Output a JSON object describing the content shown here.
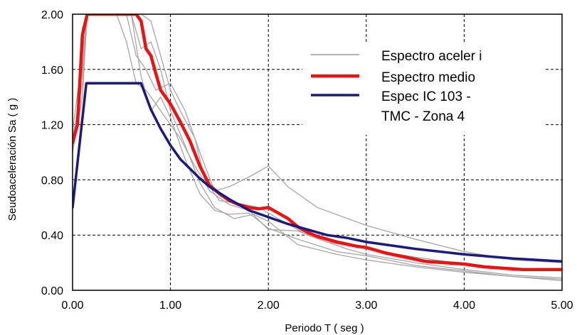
{
  "chart_data": {
    "type": "line",
    "xlabel": "Periodo  T ( seg )",
    "ylabel": "Seudoaceleración  Sa ( g )",
    "xlim": [
      0,
      5
    ],
    "ylim": [
      0,
      2
    ],
    "x_ticks": [
      "0.00",
      "1.00",
      "2.00",
      "3.00",
      "4.00",
      "5.00"
    ],
    "y_ticks": [
      "0.00",
      "0.40",
      "0.80",
      "1.20",
      "1.60",
      "2.00"
    ],
    "grid": true,
    "legend_position": "top-right",
    "legend": [
      {
        "label": "Espectro aceler i",
        "color": "#999999"
      },
      {
        "label": "Espectro medio",
        "color": "#ee1111"
      },
      {
        "label": "Espec IC 103 -",
        "color": "#1a1a80"
      },
      {
        "label": "TMC - Zona 4",
        "color": ""
      }
    ],
    "series": [
      {
        "color": "#a6a6a6",
        "points": [
          [
            0.0,
            1.0
          ],
          [
            0.05,
            1.25
          ],
          [
            0.1,
            1.9
          ],
          [
            0.15,
            2.0
          ],
          [
            0.45,
            2.0
          ],
          [
            0.55,
            1.8
          ],
          [
            0.65,
            1.5
          ],
          [
            0.75,
            1.45
          ],
          [
            0.85,
            1.35
          ],
          [
            0.95,
            1.25
          ],
          [
            1.1,
            1.1
          ],
          [
            1.25,
            0.9
          ],
          [
            1.4,
            0.72
          ],
          [
            1.6,
            0.62
          ],
          [
            1.8,
            0.58
          ],
          [
            2.0,
            0.44
          ],
          [
            2.3,
            0.43
          ],
          [
            2.6,
            0.35
          ],
          [
            3.0,
            0.3
          ],
          [
            3.5,
            0.24
          ],
          [
            4.0,
            0.19
          ],
          [
            4.5,
            0.16
          ],
          [
            5.0,
            0.14
          ]
        ]
      },
      {
        "color": "#a6a6a6",
        "points": [
          [
            0.0,
            1.1
          ],
          [
            0.1,
            1.5
          ],
          [
            0.15,
            2.0
          ],
          [
            0.55,
            2.0
          ],
          [
            0.65,
            1.7
          ],
          [
            0.75,
            1.6
          ],
          [
            0.85,
            1.45
          ],
          [
            1.0,
            1.5
          ],
          [
            1.15,
            1.3
          ],
          [
            1.3,
            1.0
          ],
          [
            1.45,
            0.72
          ],
          [
            1.6,
            0.75
          ],
          [
            1.8,
            0.82
          ],
          [
            2.0,
            0.9
          ],
          [
            2.2,
            0.75
          ],
          [
            2.5,
            0.6
          ],
          [
            3.0,
            0.47
          ],
          [
            3.5,
            0.37
          ],
          [
            4.0,
            0.28
          ],
          [
            4.5,
            0.22
          ],
          [
            5.0,
            0.2
          ]
        ]
      },
      {
        "color": "#a6a6a6",
        "points": [
          [
            0.0,
            1.05
          ],
          [
            0.1,
            1.6
          ],
          [
            0.15,
            2.0
          ],
          [
            0.6,
            2.0
          ],
          [
            0.7,
            1.75
          ],
          [
            0.8,
            1.8
          ],
          [
            0.9,
            1.6
          ],
          [
            1.0,
            1.3
          ],
          [
            1.15,
            1.05
          ],
          [
            1.3,
            0.78
          ],
          [
            1.45,
            0.6
          ],
          [
            1.65,
            0.52
          ],
          [
            1.85,
            0.55
          ],
          [
            2.0,
            0.5
          ],
          [
            2.3,
            0.33
          ],
          [
            2.7,
            0.26
          ],
          [
            3.0,
            0.22
          ],
          [
            3.5,
            0.17
          ],
          [
            4.0,
            0.13
          ],
          [
            4.5,
            0.1
          ],
          [
            5.0,
            0.08
          ]
        ]
      },
      {
        "color": "#a6a6a6",
        "points": [
          [
            0.0,
            1.15
          ],
          [
            0.1,
            1.7
          ],
          [
            0.15,
            2.0
          ],
          [
            0.7,
            2.0
          ],
          [
            0.8,
            1.95
          ],
          [
            0.9,
            1.7
          ],
          [
            1.0,
            1.45
          ],
          [
            1.1,
            1.3
          ],
          [
            1.25,
            1.1
          ],
          [
            1.35,
            0.8
          ],
          [
            1.5,
            0.65
          ],
          [
            1.7,
            0.63
          ],
          [
            1.9,
            0.6
          ],
          [
            2.1,
            0.52
          ],
          [
            2.4,
            0.4
          ],
          [
            2.8,
            0.3
          ],
          [
            3.0,
            0.26
          ],
          [
            3.5,
            0.2
          ],
          [
            4.0,
            0.15
          ],
          [
            4.5,
            0.11
          ],
          [
            5.0,
            0.09
          ]
        ]
      },
      {
        "color": "#a6a6a6",
        "points": [
          [
            0.0,
            1.0
          ],
          [
            0.1,
            1.4
          ],
          [
            0.15,
            2.0
          ],
          [
            0.6,
            2.0
          ],
          [
            0.7,
            1.55
          ],
          [
            0.8,
            1.3
          ],
          [
            0.9,
            1.4
          ],
          [
            1.0,
            1.25
          ],
          [
            1.15,
            0.95
          ],
          [
            1.3,
            0.7
          ],
          [
            1.45,
            0.58
          ],
          [
            1.6,
            0.55
          ],
          [
            1.8,
            0.56
          ],
          [
            2.0,
            0.45
          ],
          [
            2.3,
            0.37
          ],
          [
            2.7,
            0.28
          ],
          [
            3.0,
            0.25
          ],
          [
            3.5,
            0.18
          ],
          [
            4.0,
            0.14
          ],
          [
            4.5,
            0.1
          ],
          [
            5.0,
            0.07
          ]
        ]
      },
      {
        "name": "Espectro medio",
        "color": "#ee1111",
        "width": 4.5,
        "points": [
          [
            0.0,
            1.07
          ],
          [
            0.05,
            1.2
          ],
          [
            0.1,
            1.85
          ],
          [
            0.15,
            2.0
          ],
          [
            0.65,
            2.0
          ],
          [
            0.7,
            1.95
          ],
          [
            0.75,
            1.75
          ],
          [
            0.8,
            1.7
          ],
          [
            0.85,
            1.57
          ],
          [
            0.9,
            1.45
          ],
          [
            1.0,
            1.35
          ],
          [
            1.1,
            1.22
          ],
          [
            1.2,
            1.08
          ],
          [
            1.3,
            0.9
          ],
          [
            1.4,
            0.76
          ],
          [
            1.5,
            0.7
          ],
          [
            1.6,
            0.65
          ],
          [
            1.7,
            0.62
          ],
          [
            1.8,
            0.6
          ],
          [
            1.9,
            0.59
          ],
          [
            2.0,
            0.6
          ],
          [
            2.1,
            0.56
          ],
          [
            2.2,
            0.52
          ],
          [
            2.3,
            0.46
          ],
          [
            2.4,
            0.42
          ],
          [
            2.5,
            0.39
          ],
          [
            2.7,
            0.35
          ],
          [
            2.9,
            0.32
          ],
          [
            3.0,
            0.31
          ],
          [
            3.2,
            0.27
          ],
          [
            3.4,
            0.24
          ],
          [
            3.6,
            0.21
          ],
          [
            3.8,
            0.2
          ],
          [
            4.0,
            0.19
          ],
          [
            4.2,
            0.17
          ],
          [
            4.4,
            0.16
          ],
          [
            4.6,
            0.15
          ],
          [
            4.8,
            0.15
          ],
          [
            5.0,
            0.15
          ]
        ]
      },
      {
        "name": "Espec IC 103 - TMC - Zona 4",
        "color": "#1a1a80",
        "width": 3.5,
        "points": [
          [
            0.0,
            0.6
          ],
          [
            0.14,
            1.5
          ],
          [
            0.7,
            1.5
          ],
          [
            0.8,
            1.31
          ],
          [
            0.9,
            1.17
          ],
          [
            1.0,
            1.05
          ],
          [
            1.1,
            0.95
          ],
          [
            1.2,
            0.88
          ],
          [
            1.3,
            0.81
          ],
          [
            1.4,
            0.75
          ],
          [
            1.6,
            0.66
          ],
          [
            1.8,
            0.58
          ],
          [
            2.0,
            0.53
          ],
          [
            2.2,
            0.48
          ],
          [
            2.4,
            0.44
          ],
          [
            2.6,
            0.4
          ],
          [
            2.8,
            0.38
          ],
          [
            3.0,
            0.35
          ],
          [
            3.5,
            0.3
          ],
          [
            4.0,
            0.26
          ],
          [
            4.5,
            0.23
          ],
          [
            5.0,
            0.21
          ]
        ]
      }
    ]
  }
}
